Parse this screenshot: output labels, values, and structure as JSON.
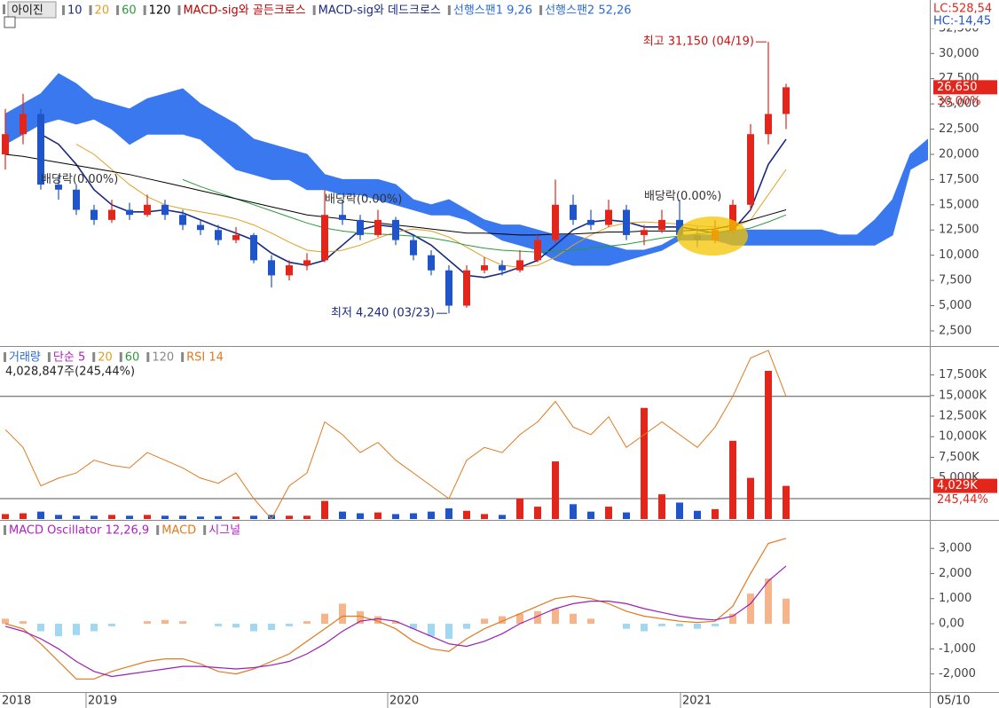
{
  "x_axis": {
    "xlim": [
      -0.3,
      52.1
    ],
    "xticks": [
      {
        "value": 4.55,
        "label": "2019"
      },
      {
        "value": 21.55,
        "label": "2020"
      },
      {
        "value": 38.05,
        "label": "2021"
      }
    ],
    "start_label": "2018",
    "end_label": "05/10"
  },
  "chart_data": [
    {
      "type": "candlestick",
      "name": "아이진",
      "up_color": "#e2261c",
      "down_color": "#1f55c8",
      "legend": [
        {
          "name": "10",
          "color": "#1a2a80"
        },
        {
          "name": "20",
          "color": "#e0a020"
        },
        {
          "name": "60",
          "color": "#2a9a3a"
        },
        {
          "name": "120",
          "color": "#000000"
        },
        {
          "name": "MACD-sig와 골든크로스",
          "color": "#c00000"
        },
        {
          "name": "MACD-sig와 데드크로스",
          "color": "#1a2a80"
        },
        {
          "name": "선행스팬1 9,26",
          "color": "#2a6ad8"
        },
        {
          "name": "선행스팬2 52,26",
          "color": "#2a6ad8"
        }
      ],
      "open": [
        20000,
        22000,
        24000,
        17000,
        16500,
        14500,
        13500,
        14500,
        14000,
        15000,
        14000,
        13000,
        12500,
        11500,
        12000,
        9500,
        8000,
        9000,
        9500,
        14000,
        13500,
        12000,
        13500,
        11500,
        10000,
        8500,
        5000,
        8500,
        9000,
        8500,
        9500,
        11500,
        15000,
        13500,
        13000,
        14500,
        12000,
        12500,
        13500,
        12000,
        11500,
        12500,
        15000,
        22000,
        24000
      ],
      "high": [
        24500,
        26000,
        24500,
        18000,
        17000,
        15000,
        15500,
        15200,
        16000,
        15500,
        14500,
        13500,
        13000,
        12800,
        12200,
        10000,
        9500,
        10200,
        16500,
        15500,
        14000,
        14500,
        13800,
        12000,
        10500,
        9000,
        9000,
        9800,
        9500,
        10500,
        12000,
        17500,
        16000,
        14500,
        15500,
        15000,
        13000,
        14500,
        15500,
        12800,
        13500,
        15500,
        23000,
        31150,
        27000
      ],
      "low": [
        18500,
        21000,
        16500,
        15500,
        14000,
        13000,
        13200,
        13500,
        13800,
        13500,
        12500,
        12000,
        11000,
        11200,
        9200,
        6800,
        7500,
        8500,
        9300,
        13000,
        11500,
        11800,
        11000,
        9500,
        8000,
        4240,
        4800,
        8200,
        8000,
        8300,
        9300,
        11200,
        13000,
        12500,
        12800,
        11500,
        11000,
        12200,
        11500,
        10800,
        11200,
        12000,
        14500,
        21000,
        22500
      ],
      "close": [
        22000,
        24000,
        17000,
        16500,
        14500,
        13500,
        14500,
        14000,
        15000,
        14000,
        13000,
        12500,
        11500,
        12000,
        9500,
        8000,
        9000,
        9500,
        14000,
        13500,
        12000,
        13500,
        11500,
        10000,
        8500,
        5000,
        8500,
        9000,
        8500,
        9500,
        11500,
        15000,
        13500,
        13000,
        14500,
        12000,
        12500,
        13500,
        12000,
        11500,
        12500,
        15000,
        22000,
        24000,
        26650
      ],
      "series": [
        {
          "name": "10",
          "color": "#1a2a80",
          "values": [
            null,
            null,
            22000,
            21000,
            19000,
            16500,
            15000,
            14300,
            14300,
            14500,
            14200,
            13500,
            12800,
            12200,
            11500,
            10200,
            9300,
            9000,
            9500,
            11000,
            12500,
            13000,
            12800,
            12000,
            11000,
            9500,
            8000,
            7800,
            8200,
            8800,
            9500,
            11000,
            12500,
            13300,
            13500,
            13300,
            12800,
            12800,
            12800,
            12500,
            12200,
            12500,
            14500,
            19000,
            21500
          ]
        },
        {
          "name": "20",
          "color": "#e0a020",
          "values": [
            null,
            null,
            null,
            null,
            21000,
            20000,
            18500,
            17000,
            15800,
            15000,
            14600,
            14300,
            14000,
            13600,
            13000,
            12200,
            11300,
            10500,
            10300,
            10500,
            11000,
            11700,
            12300,
            12600,
            12400,
            11800,
            10800,
            9800,
            9000,
            8800,
            9000,
            9800,
            11000,
            12000,
            12800,
            13200,
            13300,
            13200,
            13100,
            12900,
            12800,
            12700,
            13500,
            16000,
            18500
          ]
        },
        {
          "name": "60",
          "color": "#2a9a3a",
          "values": [
            null,
            null,
            null,
            null,
            null,
            null,
            null,
            null,
            null,
            null,
            17500,
            16800,
            16200,
            15600,
            15000,
            14400,
            13800,
            13200,
            12700,
            12400,
            12200,
            12100,
            12000,
            11900,
            11700,
            11400,
            11000,
            10700,
            10500,
            10400,
            10300,
            10400,
            10500,
            10700,
            10900,
            11100,
            11400,
            11700,
            11900,
            12100,
            12300,
            12400,
            12700,
            13300,
            14000
          ]
        },
        {
          "name": "120",
          "color": "#000000",
          "values": [
            20000,
            19800,
            19500,
            19200,
            18900,
            18600,
            18300,
            18000,
            17600,
            17200,
            16800,
            16400,
            16000,
            15600,
            15200,
            14800,
            14400,
            14000,
            13800,
            13600,
            13400,
            13200,
            13000,
            12800,
            12600,
            12400,
            12200,
            12200,
            12100,
            12000,
            12000,
            12100,
            12100,
            12200,
            12300,
            12300,
            12400,
            12400,
            12400,
            12500,
            12600,
            13000,
            13500,
            14000,
            14500
          ]
        }
      ],
      "cloud": {
        "color": "#3a78f0",
        "span1": [
          24000,
          25000,
          26000,
          28000,
          27000,
          25500,
          25000,
          24500,
          25500,
          26000,
          26500,
          25000,
          24000,
          23000,
          21500,
          21000,
          20500,
          20000,
          18000,
          17500,
          17500,
          17500,
          17000,
          15500,
          15000,
          15500,
          14500,
          13500,
          13000,
          13000,
          12500,
          12000,
          12000,
          11500,
          11000,
          10500,
          10500,
          11000,
          12000,
          12000,
          12000,
          12500,
          12500,
          12500,
          12500,
          12500,
          12500,
          12000,
          12000,
          13500,
          15500,
          20000,
          21500
        ],
        "span2": [
          21000,
          22000,
          23000,
          23500,
          23000,
          23500,
          22500,
          21000,
          22000,
          22000,
          22000,
          21500,
          20000,
          18500,
          18000,
          17500,
          17500,
          16500,
          16500,
          16000,
          16000,
          15500,
          15000,
          14500,
          14000,
          14000,
          13500,
          12500,
          11500,
          11000,
          10500,
          9500,
          9000,
          9000,
          9000,
          9500,
          10000,
          10500,
          11500,
          11500,
          11500,
          11000,
          11000,
          11000,
          11000,
          11000,
          11000,
          11000,
          11000,
          11000,
          12000,
          18500,
          19500
        ]
      },
      "annotations": [
        {
          "text": "최고 31,150 (04/19)",
          "index": 43,
          "value": 31150,
          "color": "#d01010",
          "side": "left"
        },
        {
          "text": "최저 4,240 (03/23)",
          "index": 25,
          "value": 4240,
          "color": "#1a2a80",
          "side": "left"
        },
        {
          "text": "배당락(0.00%)",
          "index": 2,
          "value": 17500,
          "color": "#333333",
          "side": "right"
        },
        {
          "text": "배당락(0.00%)",
          "index": 18,
          "value": 15500,
          "color": "#333333",
          "side": "right"
        },
        {
          "text": "배당락(0.00%)",
          "index": 36,
          "value": 15800,
          "color": "#333333",
          "side": "right"
        }
      ],
      "current_value": 26650,
      "current_label": "26,650",
      "change_label": "30,00%",
      "lc_label": "LC:528,54",
      "hc_label": "HC:-14,45",
      "ylim": [
        1000,
        35300
      ],
      "yticks": [
        {
          "value": 2500,
          "label": "2,500"
        },
        {
          "value": 5000,
          "label": "5,000"
        },
        {
          "value": 7500,
          "label": "7,500"
        },
        {
          "value": 10000,
          "label": "10,000"
        },
        {
          "value": 12500,
          "label": "12,500"
        },
        {
          "value": 15000,
          "label": "15,000"
        },
        {
          "value": 17500,
          "label": "17,500"
        },
        {
          "value": 20000,
          "label": "20,000"
        },
        {
          "value": 22500,
          "label": "22,500"
        },
        {
          "value": 25000,
          "label": "25,000"
        },
        {
          "value": 27500,
          "label": "27,500"
        },
        {
          "value": 30000,
          "label": "30,000"
        },
        {
          "value": 32500,
          "label": "32,500"
        }
      ]
    },
    {
      "type": "bar",
      "legend": [
        {
          "name": "거래량",
          "color": "#2a6ad8"
        },
        {
          "name": "단순 5",
          "color": "#b020c0"
        },
        {
          "name": "20",
          "color": "#e0a020"
        },
        {
          "name": "60",
          "color": "#2a9a3a"
        },
        {
          "name": "120",
          "color": "#888888"
        },
        {
          "name": "RSI 14",
          "color": "#e07a20"
        }
      ],
      "total_label": "4,028,847주(245,44%)",
      "values": [
        600,
        700,
        900,
        500,
        400,
        400,
        500,
        400,
        500,
        400,
        400,
        300,
        350,
        300,
        400,
        500,
        400,
        400,
        2200,
        900,
        700,
        800,
        600,
        700,
        900,
        1300,
        1000,
        600,
        500,
        2500,
        1500,
        7000,
        1800,
        900,
        1500,
        800,
        13500,
        3000,
        2000,
        1000,
        1200,
        9500,
        5000,
        18000,
        4029
      ],
      "last_label": "4,029K",
      "ratio_label": "245,44%",
      "series": [
        {
          "name": "RSI 14",
          "color": "#e07a20",
          "axis": "y2",
          "values": [
            57,
            50,
            35,
            38,
            40,
            45,
            43,
            42,
            48,
            45,
            42,
            38,
            36,
            40,
            30,
            22,
            35,
            40,
            60,
            55,
            48,
            52,
            45,
            40,
            35,
            30,
            45,
            50,
            48,
            55,
            60,
            68,
            58,
            55,
            62,
            50,
            55,
            60,
            55,
            50,
            58,
            70,
            85,
            88,
            70
          ]
        }
      ],
      "ylim": [
        0,
        20800
      ],
      "yticks": [
        {
          "value": 5000,
          "label": "5,000K"
        },
        {
          "value": 7500,
          "label": "7,500K"
        },
        {
          "value": 10000,
          "label": "10,000K"
        },
        {
          "value": 12500,
          "label": "12,500K"
        },
        {
          "value": 15000,
          "label": "15,000K"
        },
        {
          "value": 17500,
          "label": "17,500K"
        }
      ],
      "y2lim": [
        22,
        89
      ],
      "y2_ref_lines": [
        30,
        70
      ]
    },
    {
      "type": "macd",
      "legend": [
        {
          "name": "MACD Oscillator 12,26,9",
          "color": "#b020c0"
        },
        {
          "name": "MACD",
          "color": "#e07a20"
        },
        {
          "name": "시그널",
          "color": "#b020c0"
        }
      ],
      "pos_color": "#f5b48a",
      "neg_color": "#9fd8f0",
      "values": [
        200,
        100,
        -300,
        -500,
        -450,
        -300,
        -100,
        0,
        100,
        150,
        100,
        0,
        -100,
        -150,
        -300,
        -250,
        -100,
        100,
        400,
        800,
        500,
        300,
        100,
        -200,
        -500,
        -600,
        -200,
        200,
        300,
        400,
        500,
        600,
        400,
        200,
        0,
        -200,
        -300,
        -100,
        -100,
        -200,
        -100,
        400,
        1200,
        1800,
        1000
      ],
      "series": [
        {
          "name": "MACD",
          "color": "#e07a20",
          "values": [
            0,
            -200,
            -800,
            -1500,
            -2200,
            -2200,
            -1900,
            -1700,
            -1500,
            -1400,
            -1400,
            -1600,
            -1900,
            -2000,
            -1800,
            -1500,
            -1200,
            -700,
            -200,
            300,
            300,
            100,
            -200,
            -700,
            -1000,
            -1100,
            -600,
            -200,
            100,
            400,
            700,
            1000,
            1100,
            1000,
            800,
            500,
            300,
            200,
            100,
            50,
            100,
            700,
            2000,
            3200,
            3400
          ]
        },
        {
          "name": "시그널",
          "color": "#9a20b8",
          "values": [
            -100,
            -300,
            -600,
            -1000,
            -1500,
            -1900,
            -2100,
            -2000,
            -1900,
            -1800,
            -1700,
            -1700,
            -1750,
            -1800,
            -1750,
            -1650,
            -1500,
            -1200,
            -800,
            -300,
            100,
            200,
            100,
            -200,
            -500,
            -800,
            -900,
            -700,
            -400,
            0,
            300,
            600,
            800,
            900,
            900,
            800,
            600,
            450,
            300,
            200,
            150,
            300,
            800,
            1700,
            2300
          ]
        }
      ],
      "ylim": [
        -2720,
        4100
      ],
      "yticks": [
        {
          "value": 3000,
          "label": "3,000"
        },
        {
          "value": 2000,
          "label": "2,000"
        },
        {
          "value": 1000,
          "label": "1,000"
        },
        {
          "value": 0,
          "label": "0,00"
        },
        {
          "value": -1000,
          "label": "-1,000"
        },
        {
          "value": -2000,
          "label": "-2,000"
        }
      ]
    }
  ]
}
